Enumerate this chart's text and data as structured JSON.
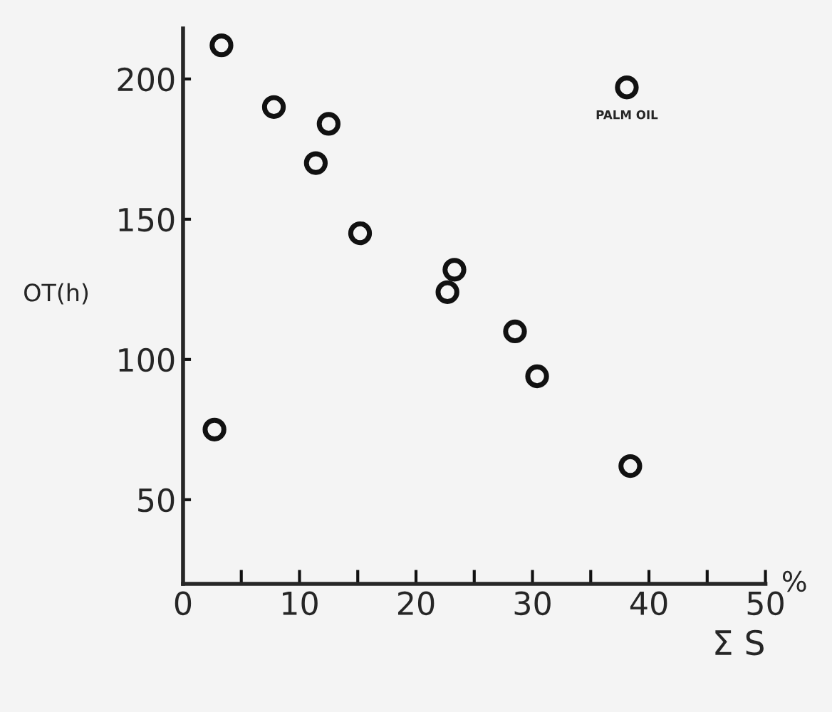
{
  "chart_data": {
    "type": "scatter",
    "xlabel": "Σ S",
    "ylabel": "OT(h)",
    "x": [
      3.3,
      7.8,
      12.5,
      11.4,
      15.2,
      23.3,
      22.7,
      28.5,
      30.4,
      38.4,
      2.7,
      38.1
    ],
    "series": [
      {
        "color": "#111111",
        "values": [
          212,
          190,
          184,
          170,
          145,
          132,
          124,
          110,
          94,
          62,
          75,
          197
        ]
      }
    ],
    "marker": "circle",
    "grid": false,
    "legend": false,
    "xlim": [
      0,
      50
    ],
    "xticks": [
      0,
      {
        "value": 5,
        "label": null
      },
      10,
      {
        "value": 15,
        "label": null
      },
      20,
      {
        "value": 25,
        "label": null
      },
      30,
      {
        "value": 35,
        "label": null
      },
      40,
      {
        "value": 45,
        "label": null
      },
      50
    ],
    "ylim": [
      20,
      218
    ],
    "yticks": [
      50,
      100,
      150,
      200
    ],
    "annotations": [
      {
        "text": "PALM OIL",
        "x": 38.1,
        "y": 197
      },
      "%"
    ]
  }
}
